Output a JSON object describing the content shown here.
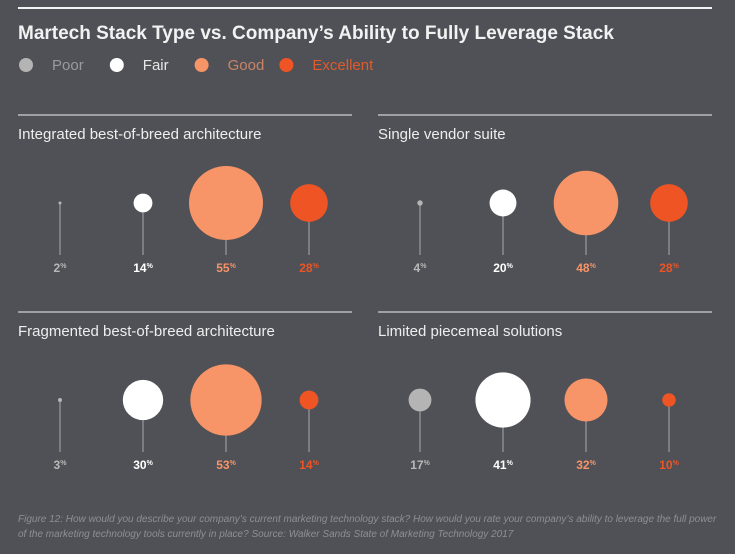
{
  "chart_data": {
    "type": "bubble",
    "title": "Martech Stack Type vs. Company’s Ability to Fully Leverage Stack",
    "legend": [
      {
        "name": "Poor",
        "color": "#b4b4b4",
        "text_color": "#9a9a9e"
      },
      {
        "name": "Fair",
        "color": "#ffffff",
        "text_color": "#e6e6e6"
      },
      {
        "name": "Good",
        "color": "#f79468",
        "text_color": "#c98466"
      },
      {
        "name": "Excellent",
        "color": "#ee5424",
        "text_color": "#e05a2c"
      }
    ],
    "legend_placement": "top-left",
    "unit": "%",
    "panels": [
      {
        "title": "Integrated best-of-breed architecture",
        "values": [
          2,
          14,
          55,
          28
        ]
      },
      {
        "title": "Single vendor suite",
        "values": [
          4,
          20,
          48,
          28
        ]
      },
      {
        "title": "Fragmented best-of-breed architecture",
        "values": [
          3,
          30,
          53,
          14
        ]
      },
      {
        "title": "Limited piecemeal solutions",
        "values": [
          17,
          41,
          32,
          10
        ]
      }
    ]
  },
  "footnote": "Figure 12: How would you describe your company’s current marketing technology stack? How would you rate your company’s ability to leverage the full power of the marketing technology tools currently in place? Source: Walker Sands State of Marketing Technology 2017"
}
